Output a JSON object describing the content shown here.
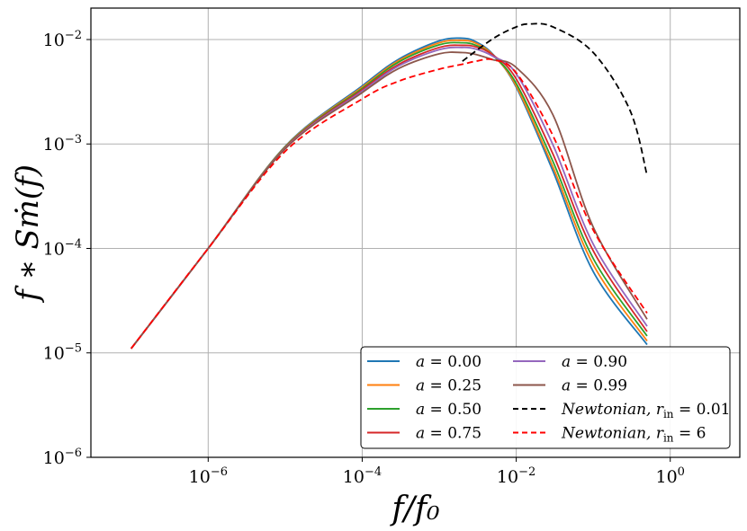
{
  "chart_data": {
    "type": "line",
    "title": "",
    "xlabel": "f/f₀",
    "ylabel": "f ∗ Sṁ(f)",
    "xscale": "log",
    "yscale": "log",
    "xlim": [
      3e-08,
      8
    ],
    "ylim": [
      1e-06,
      0.02
    ],
    "grid": true,
    "legend_position": "lower-right",
    "legend_columns": 2,
    "x_ticks": [
      {
        "base": "10",
        "exp": "−6",
        "value": 1e-06
      },
      {
        "base": "10",
        "exp": "−4",
        "value": 0.0001
      },
      {
        "base": "10",
        "exp": "−2",
        "value": 0.01
      },
      {
        "base": "10",
        "exp": "0",
        "value": 1
      }
    ],
    "y_ticks": [
      {
        "base": "10",
        "exp": "−2",
        "value": 0.01
      },
      {
        "base": "10",
        "exp": "−3",
        "value": 0.001
      },
      {
        "base": "10",
        "exp": "−4",
        "value": 0.0001
      },
      {
        "base": "10",
        "exp": "−5",
        "value": 1e-05
      },
      {
        "base": "10",
        "exp": "−6",
        "value": 1e-06
      }
    ],
    "x": [
      1e-07,
      1e-06,
      1e-05,
      0.0001,
      0.0003,
      0.001,
      0.002,
      0.003,
      0.005,
      0.01,
      0.03,
      0.1,
      0.5
    ],
    "series": [
      {
        "name": "a = 0.00",
        "label_var": "a",
        "label_value": " = 0.00",
        "color": "#1f77b4",
        "dash": "",
        "values": [
          1.1e-05,
          0.0001,
          0.00095,
          0.0036,
          0.0065,
          0.0097,
          0.0103,
          0.0095,
          0.0072,
          0.0035,
          0.00055,
          6e-05,
          1.2e-05
        ]
      },
      {
        "name": "a = 0.25",
        "label_var": "a",
        "label_value": " = 0.25",
        "color": "#ff7f0e",
        "dash": "",
        "values": [
          1.1e-05,
          0.0001,
          0.00094,
          0.0035,
          0.0063,
          0.0093,
          0.0098,
          0.0092,
          0.0071,
          0.0036,
          0.0006,
          7e-05,
          1.3e-05
        ]
      },
      {
        "name": "a = 0.50",
        "label_var": "a",
        "label_value": " = 0.50",
        "color": "#2ca02c",
        "dash": "",
        "values": [
          1.1e-05,
          0.0001,
          0.00093,
          0.0034,
          0.0061,
          0.0089,
          0.0093,
          0.0088,
          0.007,
          0.0038,
          0.00068,
          8e-05,
          1.45e-05
        ]
      },
      {
        "name": "a = 0.75",
        "label_var": "a",
        "label_value": " = 0.75",
        "color": "#d62728",
        "dash": "",
        "values": [
          1.1e-05,
          0.0001,
          0.00092,
          0.0033,
          0.0058,
          0.0084,
          0.0088,
          0.0085,
          0.0071,
          0.0042,
          0.0008,
          9.5e-05,
          1.6e-05
        ]
      },
      {
        "name": "a = 0.90",
        "label_var": "a",
        "label_value": " = 0.90",
        "color": "#9467bd",
        "dash": "",
        "values": [
          1.1e-05,
          0.0001,
          0.00091,
          0.0032,
          0.0056,
          0.008,
          0.0084,
          0.0081,
          0.0069,
          0.0047,
          0.00098,
          0.00011,
          1.8e-05
        ]
      },
      {
        "name": "a = 0.99",
        "label_var": "a",
        "label_value": " = 0.99",
        "color": "#8c564b",
        "dash": "",
        "values": [
          1.1e-05,
          0.0001,
          0.0009,
          0.0031,
          0.0053,
          0.0073,
          0.0075,
          0.0072,
          0.0064,
          0.0054,
          0.0019,
          0.00016,
          2.1e-05
        ]
      },
      {
        "name": "Newtonian, r_in = 0.01",
        "label_var": "Newtonian, r",
        "label_sub": "in",
        "label_value": " = 0.01",
        "color": "#000000",
        "dash": "7,4",
        "x": [
          0.002,
          0.005,
          0.01,
          0.015,
          0.03,
          0.1,
          0.3,
          0.5
        ],
        "values": [
          0.0062,
          0.0102,
          0.0132,
          0.0141,
          0.0132,
          0.0075,
          0.0021,
          0.0005
        ]
      },
      {
        "name": "Newtonian, r_in = 6",
        "label_var": "Newtonian, r",
        "label_sub": "in",
        "label_value": " = 6",
        "color": "#ff0000",
        "dash": "7,4",
        "values": [
          1.1e-05,
          0.0001,
          0.00085,
          0.0027,
          0.004,
          0.0052,
          0.0058,
          0.0062,
          0.0064,
          0.0048,
          0.0012,
          0.00015,
          2.4e-05
        ]
      }
    ]
  }
}
